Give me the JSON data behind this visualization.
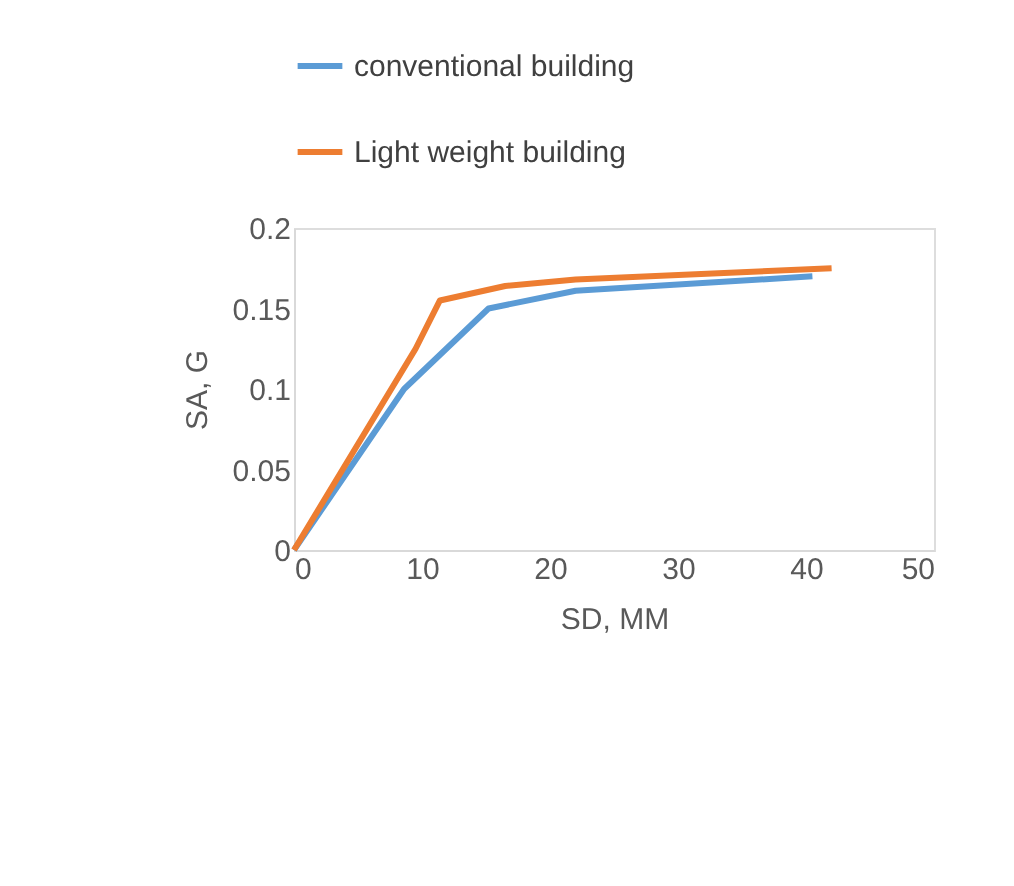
{
  "chart_data": {
    "type": "line",
    "xlabel": "SD, MM",
    "ylabel": "SA, G",
    "xlim": [
      0,
      50
    ],
    "xticks": [
      0,
      10,
      20,
      30,
      40,
      50
    ],
    "ylim": [
      0,
      0.2
    ],
    "yticks": [
      0,
      0.05,
      0.1,
      0.15,
      0.2
    ],
    "grid": false,
    "legend": "top",
    "marker": "none",
    "line_style": "solid",
    "series": [
      {
        "name": "conventional building",
        "color": "#5b9bd5",
        "x": [
          0,
          8.6,
          15.2,
          22,
          40.5
        ],
        "values": [
          0,
          0.1,
          0.15,
          0.161,
          0.17
        ]
      },
      {
        "name": "Light weight building",
        "color": "#ed7d31",
        "x": [
          0,
          9.5,
          11.4,
          16.5,
          22,
          42
        ],
        "values": [
          0,
          0.125,
          0.155,
          0.164,
          0.168,
          0.175
        ]
      }
    ]
  }
}
